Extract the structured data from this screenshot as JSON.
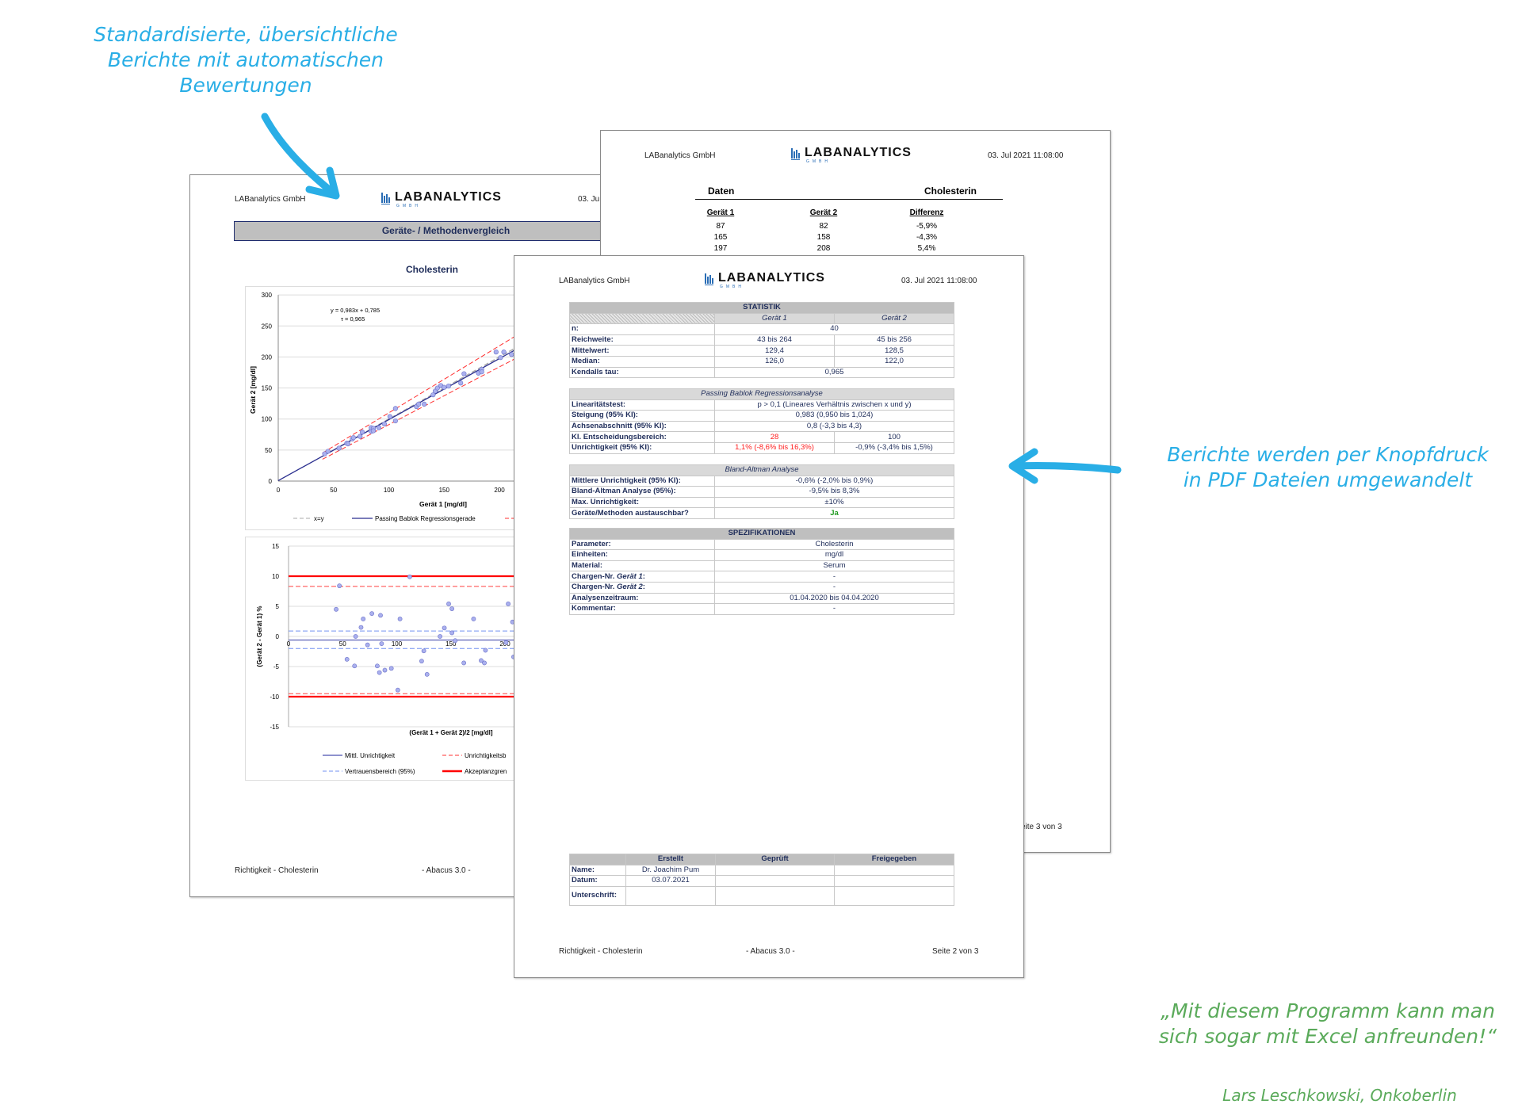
{
  "annotations": {
    "top_left": [
      "Standardisierte, übersichtliche",
      "Berichte mit automatischen",
      "Bewertungen"
    ],
    "right": [
      "Berichte werden per Knopfdruck",
      "in PDF Dateien umgewandelt"
    ],
    "quote": [
      "„Mit diesem Programm kann man",
      "sich sogar mit Excel anfreunden!“"
    ],
    "author": "Lars Leschkowski, Onkoberlin",
    "colors": {
      "annotation": "#29aee6",
      "quote": "#5aaa5a"
    }
  },
  "logo": {
    "name": "LABANALYTICS",
    "sub": "GMBH"
  },
  "left_page": {
    "company": "LABanalytics GmbH",
    "date": "03. Ju",
    "title": "Geräte- / Methodenvergleich",
    "subtitle": "Cholesterin",
    "footer_left": "Richtigkeit - Cholesterin",
    "footer_center": "- Abacus 3.0 -"
  },
  "back_page": {
    "company": "LABanalytics GmbH",
    "date": "03. Jul 2021 11:08:00",
    "section": "Daten",
    "parameter": "Cholesterin",
    "columns": [
      "Gerät 1",
      "Gerät 2",
      "Differenz"
    ],
    "rows": [
      [
        "87",
        "82",
        "-5,9%"
      ],
      [
        "165",
        "158",
        "-4,3%"
      ],
      [
        "197",
        "208",
        "5,4%"
      ]
    ],
    "footer_right": "eite 3 von 3"
  },
  "front_page": {
    "company": "LABanalytics GmbH",
    "date": "03. Jul 2021 11:08:00",
    "statistik": {
      "title": "STATISTIK",
      "col1": "Gerät 1",
      "col2": "Gerät 2",
      "n_label": "n:",
      "n": "40",
      "rows": [
        [
          "Reichweite:",
          "43 bis 264",
          "45 bis 256"
        ],
        [
          "Mittelwert:",
          "129,4",
          "128,5"
        ],
        [
          "Median:",
          "126,0",
          "122,0"
        ]
      ],
      "tau_label": "Kendalls tau:",
      "tau": "0,965"
    },
    "passing": {
      "title": "Passing Bablok Regressionsanalyse",
      "rows": [
        [
          "Linearitätstest:",
          "p > 0,1 (Lineares Verhältnis zwischen x und y)"
        ],
        [
          "Steigung (95% KI):",
          "0,983 (0,950 bis 1,024)"
        ],
        [
          "Achsenabschnitt (95% KI):",
          "0,8 (-3,3 bis 4,3)"
        ]
      ],
      "kl_label": "Kl. Entscheidungsbereich:",
      "kl1": "28",
      "kl2": "100",
      "unr_label": "Unrichtigkeit (95% KI):",
      "unr1": "1,1% (-8,6% bis 16,3%)",
      "unr2": "-0,9% (-3,4% bis 1,5%)"
    },
    "bland": {
      "title": "Bland-Altman Analyse",
      "rows": [
        [
          "Mittlere Unrichtigkeit (95% KI):",
          "-0,6% (-2,0% bis 0,9%)"
        ],
        [
          "Bland-Altman Analyse (95%):",
          "-9,5% bis 8,3%"
        ],
        [
          "Max. Unrichtigkeit:",
          "±10%"
        ]
      ],
      "exch_label": "Geräte/Methoden austauschbar?",
      "exch": "Ja"
    },
    "spez": {
      "title": "SPEZIFIKATIONEN",
      "rows": [
        [
          "Parameter:",
          "Cholesterin"
        ],
        [
          "Einheiten:",
          "mg/dl"
        ],
        [
          "Material:",
          "Serum"
        ],
        [
          "Analysenzeitraum:",
          "01.04.2020 bis 04.04.2020"
        ],
        [
          "Kommentar:",
          "-"
        ]
      ],
      "charge_prefix": "Chargen-Nr.",
      "charge1_dev": "Gerät 1",
      "charge2_dev": "Gerät 2",
      "charge1": "-",
      "charge2": "-"
    },
    "signoff": {
      "cols": [
        "Erstellt",
        "Geprüft",
        "Freigegeben"
      ],
      "name_label": "Name:",
      "name": "Dr. Joachim Pum",
      "date_label": "Datum:",
      "date": "03.07.2021",
      "sig_label": "Unterschrift:"
    },
    "footer_left": "Richtigkeit - Cholesterin",
    "footer_center": "- Abacus 3.0 -",
    "footer_right": "Seite 2 von 3"
  },
  "chart_data": [
    {
      "type": "scatter",
      "xlabel": "Gerät 1 [mg/dl]",
      "ylabel": "Gerät 2 [mg/dl]",
      "xlim": [
        0,
        250
      ],
      "ylim": [
        0,
        300
      ],
      "xticks": [
        0,
        50,
        100,
        150,
        200
      ],
      "yticks": [
        0,
        50,
        100,
        150,
        200,
        250,
        300
      ],
      "grid": true,
      "annotation": [
        "y = 0,983x + 0,785",
        "τ = 0,965"
      ],
      "regression": {
        "slope": 0.983,
        "intercept": 0.785
      },
      "legend": [
        "x=y",
        "Passing Bablok Regressionsgerade"
      ],
      "legend_position": "bottom",
      "points": [
        [
          42,
          44
        ],
        [
          45,
          48
        ],
        [
          55,
          53
        ],
        [
          62,
          61
        ],
        [
          63,
          60
        ],
        [
          67,
          68
        ],
        [
          68,
          70
        ],
        [
          74,
          72
        ],
        [
          76,
          79
        ],
        [
          84,
          80
        ],
        [
          84,
          86
        ],
        [
          86,
          85
        ],
        [
          86,
          81
        ],
        [
          91,
          86
        ],
        [
          96,
          92
        ],
        [
          101,
          104
        ],
        [
          106,
          117
        ],
        [
          106,
          97
        ],
        [
          125,
          120
        ],
        [
          127,
          124
        ],
        [
          132,
          124
        ],
        [
          140,
          139
        ],
        [
          142,
          145
        ],
        [
          144,
          150
        ],
        [
          147,
          154
        ],
        [
          150,
          151
        ],
        [
          154,
          153
        ],
        [
          165,
          158
        ],
        [
          168,
          173
        ],
        [
          181,
          174
        ],
        [
          184,
          180
        ],
        [
          184,
          176
        ],
        [
          197,
          208
        ],
        [
          201,
          199
        ],
        [
          204,
          208
        ],
        [
          211,
          204
        ]
      ],
      "colors": {
        "points": "#aab0ee",
        "regression": "#2b2f8f",
        "identity": "#aaaaaa",
        "band": "#ff3030"
      }
    },
    {
      "type": "scatter",
      "xlabel": "(Gerät 1 + Gerät 2)/2 [mg/dl]",
      "ylabel": "(Gerät 2 - Gerät 1) %",
      "xlim": [
        0,
        250
      ],
      "ylim": [
        -15,
        15
      ],
      "xticks": [
        0,
        50,
        100,
        150,
        200
      ],
      "yticks": [
        -15,
        -10,
        -5,
        0,
        5,
        10,
        15
      ],
      "grid": true,
      "mean": -0.6,
      "ci": [
        -2.0,
        0.9
      ],
      "loa": [
        -9.5,
        8.3
      ],
      "acceptance": [
        -10,
        10
      ],
      "legend": [
        "Mittl. Unrichtigkeit",
        "Unrichtigkeitsb",
        "Vertrauensbereich (95%)",
        "Akzeptanzgren"
      ],
      "legend_position": "bottom",
      "points": [
        [
          44,
          4.5
        ],
        [
          47,
          8.4
        ],
        [
          54,
          -3.8
        ],
        [
          62,
          0
        ],
        [
          61,
          -4.9
        ],
        [
          67,
          1.5
        ],
        [
          69,
          2.9
        ],
        [
          73,
          -1.4
        ],
        [
          77,
          3.8
        ],
        [
          82,
          -4.9
        ],
        [
          84,
          -6
        ],
        [
          85,
          3.5
        ],
        [
          86,
          -1.2
        ],
        [
          89,
          -5.6
        ],
        [
          95,
          -5.3
        ],
        [
          101,
          -8.9
        ],
        [
          103,
          2.9
        ],
        [
          112,
          9.9
        ],
        [
          123,
          -4.1
        ],
        [
          125,
          -2.4
        ],
        [
          128,
          -6.3
        ],
        [
          140,
          0
        ],
        [
          144,
          1.4
        ],
        [
          148,
          5.4
        ],
        [
          151,
          4.6
        ],
        [
          151,
          0.6
        ],
        [
          154,
          -0.7
        ],
        [
          162,
          -4.4
        ],
        [
          171,
          2.9
        ],
        [
          178,
          -4
        ],
        [
          181,
          -4.4
        ],
        [
          182,
          -2.3
        ],
        [
          201,
          -1
        ],
        [
          203,
          5.4
        ],
        [
          207,
          2.4
        ],
        [
          208,
          -3.4
        ]
      ]
    }
  ]
}
